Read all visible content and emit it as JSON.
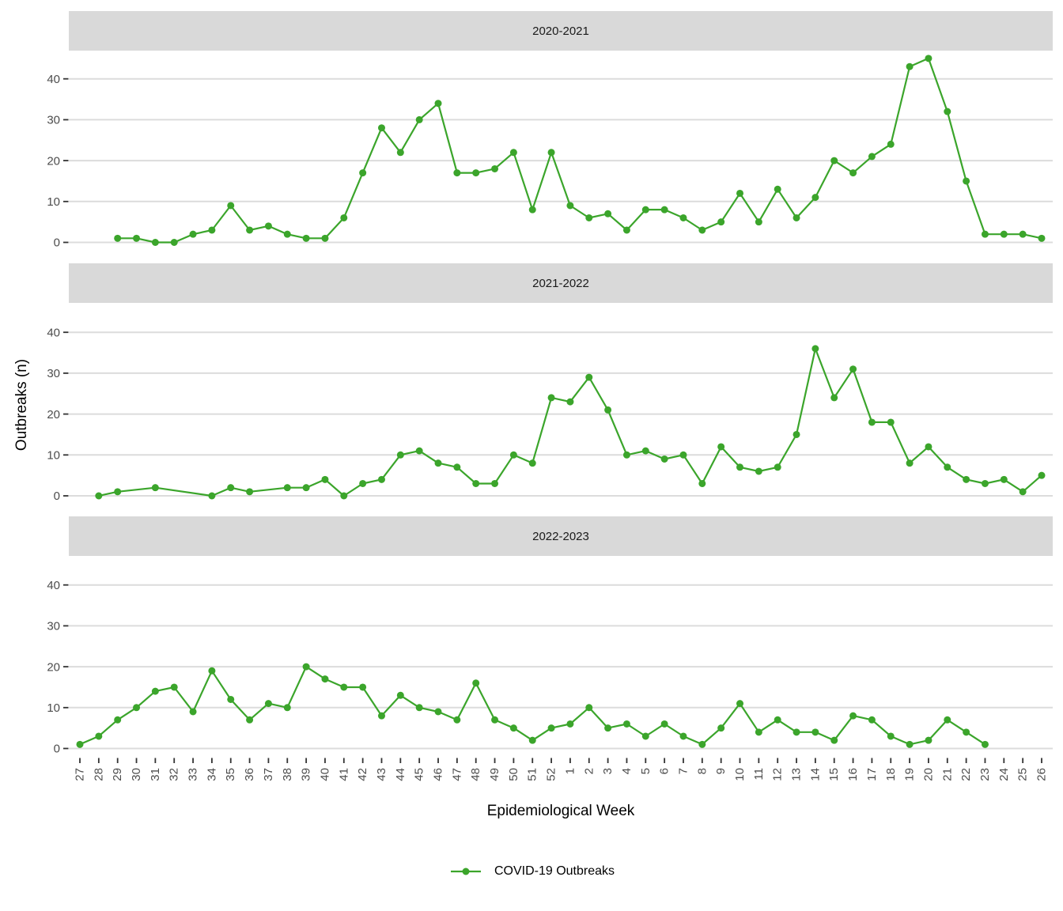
{
  "chart_data": {
    "type": "line",
    "facet_variable": "season",
    "facets": [
      {
        "label": "2020-2021",
        "values": [
          null,
          null,
          1,
          1,
          0,
          0,
          2,
          3,
          9,
          3,
          4,
          2,
          1,
          1,
          6,
          17,
          28,
          22,
          30,
          34,
          17,
          17,
          18,
          22,
          8,
          22,
          9,
          6,
          7,
          3,
          8,
          8,
          6,
          3,
          5,
          12,
          5,
          13,
          6,
          11,
          20,
          17,
          21,
          24,
          43,
          45,
          32,
          15,
          2,
          2,
          2,
          1
        ]
      },
      {
        "label": "2021-2022",
        "values": [
          null,
          0,
          1,
          null,
          2,
          null,
          null,
          0,
          2,
          1,
          null,
          2,
          2,
          4,
          0,
          3,
          4,
          10,
          11,
          8,
          7,
          3,
          3,
          10,
          8,
          24,
          23,
          29,
          21,
          10,
          11,
          9,
          10,
          3,
          12,
          7,
          6,
          7,
          15,
          36,
          24,
          31,
          18,
          18,
          8,
          12,
          7,
          4,
          3,
          4,
          1,
          5
        ]
      },
      {
        "label": "2022-2023",
        "values": [
          1,
          3,
          7,
          10,
          14,
          15,
          9,
          19,
          12,
          7,
          11,
          10,
          20,
          17,
          15,
          15,
          8,
          13,
          10,
          9,
          7,
          16,
          7,
          5,
          2,
          5,
          6,
          10,
          5,
          6,
          3,
          6,
          3,
          1,
          5,
          11,
          4,
          7,
          4,
          4,
          2,
          8,
          7,
          3,
          1,
          2,
          7,
          4,
          1,
          null,
          null,
          null
        ]
      }
    ],
    "categories": [
      "27",
      "28",
      "29",
      "30",
      "31",
      "32",
      "33",
      "34",
      "35",
      "36",
      "37",
      "38",
      "39",
      "40",
      "41",
      "42",
      "43",
      "44",
      "45",
      "46",
      "47",
      "48",
      "49",
      "50",
      "51",
      "52",
      "1",
      "2",
      "3",
      "4",
      "5",
      "6",
      "7",
      "8",
      "9",
      "10",
      "11",
      "12",
      "13",
      "14",
      "15",
      "16",
      "17",
      "18",
      "19",
      "20",
      "21",
      "22",
      "23",
      "24",
      "25",
      "26"
    ],
    "xlabel": "Epidemiological Week",
    "ylabel": "Outbreaks (n)",
    "y_ticks": [
      0,
      10,
      20,
      30,
      40
    ],
    "ylim": [
      0,
      45
    ],
    "grid": "horizontal-major-only",
    "legend": {
      "position": "bottom",
      "items": [
        {
          "label": "COVID-19 Outbreaks",
          "marker": "circle-line"
        }
      ]
    },
    "colors": {
      "series": "#3ba52b",
      "strip_bg": "#d9d9d9",
      "strip_text": "#1a1a1a",
      "grid": "#dcdcdc",
      "tick_mark": "#333333",
      "tick_text": "#4d4d4d",
      "axis_title": "#000000"
    }
  }
}
